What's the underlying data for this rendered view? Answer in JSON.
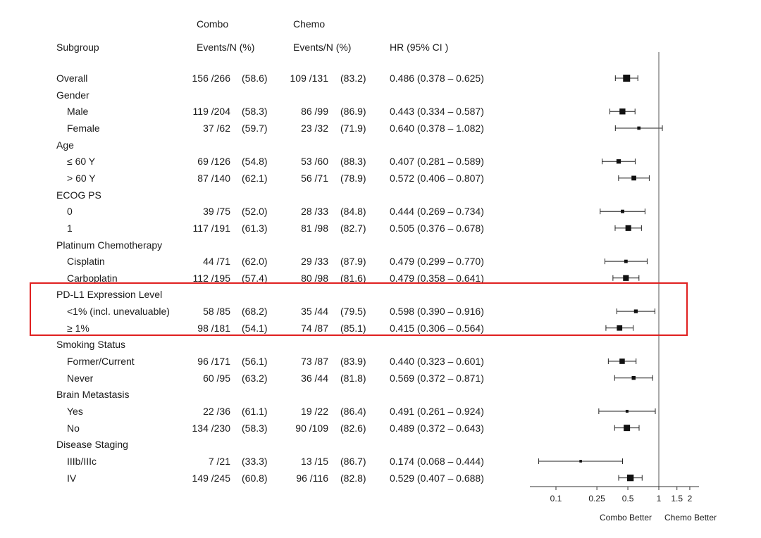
{
  "headers": {
    "combo_group": "Combo",
    "chemo_group": "Chemo",
    "subgroup": "Subgroup",
    "combo_events": "Events/N (%)",
    "chemo_events": "Events/N (%)",
    "hr": "HR (95% CI )"
  },
  "footer": {
    "left": "Combo Better",
    "right": "Chemo Better"
  },
  "highlight": {
    "from_row": "PD-L1 Expression Level",
    "to_row": "≥  1%",
    "color": "#e02020"
  },
  "chart_data": {
    "type": "forest",
    "x_scale": "log",
    "reference_line": 1,
    "x_ticks": [
      {
        "value": 0.1,
        "label": "0.1"
      },
      {
        "value": 0.25,
        "label": "0.25"
      },
      {
        "value": 0.5,
        "label": "0.5"
      },
      {
        "value": 1,
        "label": "1"
      },
      {
        "value": 1.5,
        "label": "1.5"
      },
      {
        "value": 2,
        "label": "2"
      }
    ],
    "rows": [
      {
        "label": "Overall",
        "indent": 0,
        "combo": "156 /266",
        "combo_pct": "(58.6)",
        "chemo": "109 /131",
        "chemo_pct": "(83.2)",
        "hr_text": "0.486 (0.378 – 0.625)",
        "hr": 0.486,
        "lo": 0.378,
        "hi": 0.625
      },
      {
        "label": "Gender",
        "indent": 0,
        "header": true
      },
      {
        "label": "Male",
        "indent": 1,
        "combo": "119 /204",
        "combo_pct": "(58.3)",
        "chemo": "86 /99",
        "chemo_pct": "(86.9)",
        "hr_text": "0.443 (0.334 – 0.587)",
        "hr": 0.443,
        "lo": 0.334,
        "hi": 0.587
      },
      {
        "label": "Female",
        "indent": 1,
        "combo": "37 /62",
        "combo_pct": "(59.7)",
        "chemo": "23 /32",
        "chemo_pct": "(71.9)",
        "hr_text": "0.640 (0.378 – 1.082)",
        "hr": 0.64,
        "lo": 0.378,
        "hi": 1.082
      },
      {
        "label": "Age",
        "indent": 0,
        "header": true
      },
      {
        "label": "≤  60  Y",
        "indent": 1,
        "combo": "69 /126",
        "combo_pct": "(54.8)",
        "chemo": "53 /60",
        "chemo_pct": "(88.3)",
        "hr_text": "0.407 (0.281 – 0.589)",
        "hr": 0.407,
        "lo": 0.281,
        "hi": 0.589
      },
      {
        "label": "> 60 Y",
        "indent": 1,
        "combo": "87 /140",
        "combo_pct": "(62.1)",
        "chemo": "56 /71",
        "chemo_pct": "(78.9)",
        "hr_text": "0.572 (0.406 – 0.807)",
        "hr": 0.572,
        "lo": 0.406,
        "hi": 0.807
      },
      {
        "label": "ECOG PS",
        "indent": 0,
        "header": true
      },
      {
        "label": "0",
        "indent": 1,
        "combo": "39 /75",
        "combo_pct": "(52.0)",
        "chemo": "28 /33",
        "chemo_pct": "(84.8)",
        "hr_text": "0.444 (0.269 – 0.734)",
        "hr": 0.444,
        "lo": 0.269,
        "hi": 0.734
      },
      {
        "label": "1",
        "indent": 1,
        "combo": "117 /191",
        "combo_pct": "(61.3)",
        "chemo": "81 /98",
        "chemo_pct": "(82.7)",
        "hr_text": "0.505 (0.376 – 0.678)",
        "hr": 0.505,
        "lo": 0.376,
        "hi": 0.678
      },
      {
        "label": "Platinum Chemotherapy",
        "indent": 0,
        "header": true
      },
      {
        "label": "Cisplatin",
        "indent": 1,
        "combo": "44 /71",
        "combo_pct": "(62.0)",
        "chemo": "29 /33",
        "chemo_pct": "(87.9)",
        "hr_text": "0.479 (0.299 – 0.770)",
        "hr": 0.479,
        "lo": 0.299,
        "hi": 0.77
      },
      {
        "label": "Carboplatin",
        "indent": 1,
        "combo": "112 /195",
        "combo_pct": "(57.4)",
        "chemo": "80 /98",
        "chemo_pct": "(81.6)",
        "hr_text": "0.479 (0.358 – 0.641)",
        "hr": 0.479,
        "lo": 0.358,
        "hi": 0.641
      },
      {
        "label": "PD-L1 Expression Level",
        "indent": 0,
        "header": true
      },
      {
        "label": "<1% (incl. unevaluable)",
        "indent": 1,
        "combo": "58 /85",
        "combo_pct": "(68.2)",
        "chemo": "35 /44",
        "chemo_pct": "(79.5)",
        "hr_text": "0.598 (0.390 – 0.916)",
        "hr": 0.598,
        "lo": 0.39,
        "hi": 0.916
      },
      {
        "label": "≥  1%",
        "indent": 1,
        "combo": "98 /181",
        "combo_pct": "(54.1)",
        "chemo": "74 /87",
        "chemo_pct": "(85.1)",
        "hr_text": "0.415 (0.306 – 0.564)",
        "hr": 0.415,
        "lo": 0.306,
        "hi": 0.564
      },
      {
        "label": "Smoking Status",
        "indent": 0,
        "header": true
      },
      {
        "label": "Former/Current",
        "indent": 1,
        "combo": "96 /171",
        "combo_pct": "(56.1)",
        "chemo": "73 /87",
        "chemo_pct": "(83.9)",
        "hr_text": "0.440 (0.323 – 0.601)",
        "hr": 0.44,
        "lo": 0.323,
        "hi": 0.601
      },
      {
        "label": "Never",
        "indent": 1,
        "combo": "60 /95",
        "combo_pct": "(63.2)",
        "chemo": "36 /44",
        "chemo_pct": "(81.8)",
        "hr_text": "0.569 (0.372 – 0.871)",
        "hr": 0.569,
        "lo": 0.372,
        "hi": 0.871
      },
      {
        "label": "Brain Metastasis",
        "indent": 0,
        "header": true
      },
      {
        "label": "Yes",
        "indent": 1,
        "combo": "22 /36",
        "combo_pct": "(61.1)",
        "chemo": "19 /22",
        "chemo_pct": "(86.4)",
        "hr_text": "0.491 (0.261 – 0.924)",
        "hr": 0.491,
        "lo": 0.261,
        "hi": 0.924
      },
      {
        "label": "No",
        "indent": 1,
        "combo": "134 /230",
        "combo_pct": "(58.3)",
        "chemo": "90 /109",
        "chemo_pct": "(82.6)",
        "hr_text": "0.489 (0.372 – 0.643)",
        "hr": 0.489,
        "lo": 0.372,
        "hi": 0.643
      },
      {
        "label": "Disease Staging",
        "indent": 0,
        "header": true
      },
      {
        "label": "IIIb/IIIc",
        "indent": 1,
        "combo": "7 /21",
        "combo_pct": "(33.3)",
        "chemo": "13 /15",
        "chemo_pct": "(86.7)",
        "hr_text": "0.174 (0.068 – 0.444)",
        "hr": 0.174,
        "lo": 0.068,
        "hi": 0.444
      },
      {
        "label": "IV",
        "indent": 1,
        "combo": "149 /245",
        "combo_pct": "(60.8)",
        "chemo": "96 /116",
        "chemo_pct": "(82.8)",
        "hr_text": "0.529 (0.407 – 0.688)",
        "hr": 0.529,
        "lo": 0.407,
        "hi": 0.688
      }
    ]
  }
}
